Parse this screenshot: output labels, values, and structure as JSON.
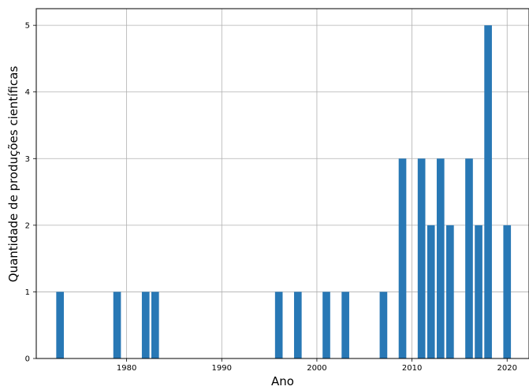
{
  "chart_data": {
    "type": "bar",
    "title": "",
    "xlabel": "Ano",
    "ylabel": "Quantidade de produções científicas",
    "x": [
      1973,
      1979,
      1982,
      1983,
      1996,
      1998,
      2001,
      2003,
      2007,
      2009,
      2011,
      2012,
      2013,
      2014,
      2016,
      2017,
      2018,
      2020
    ],
    "values": [
      1,
      1,
      1,
      1,
      1,
      1,
      1,
      1,
      1,
      3,
      3,
      2,
      3,
      2,
      3,
      2,
      5,
      2
    ],
    "xlim": [
      1970.5,
      2022.3
    ],
    "ylim": [
      0,
      5.25
    ],
    "xticks": [
      "1980",
      "1990",
      "2000",
      "2010",
      "2020"
    ],
    "yticks": [
      "0",
      "1",
      "2",
      "3",
      "4",
      "5"
    ],
    "grid": true,
    "colors": {
      "bar": "#2878b5",
      "grid": "#b0b0b0",
      "axis": "#000000"
    }
  }
}
